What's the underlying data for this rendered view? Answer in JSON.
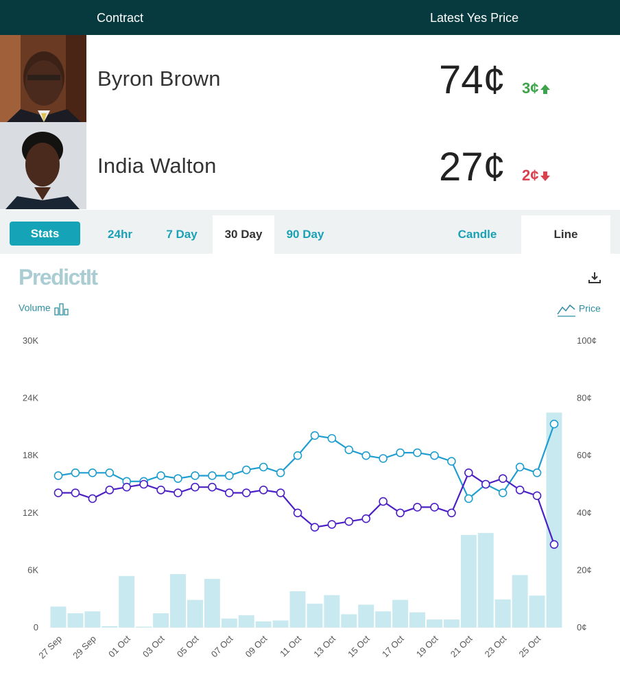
{
  "header": {
    "contract_label": "Contract",
    "price_label": "Latest Yes Price"
  },
  "contracts": [
    {
      "name": "Byron Brown",
      "price": "74¢",
      "change": "3¢",
      "direction": "up"
    },
    {
      "name": "India Walton",
      "price": "27¢",
      "change": "2¢",
      "direction": "down"
    }
  ],
  "tabs": {
    "stats": "Stats",
    "t24": "24hr",
    "t7": "7 Day",
    "t30": "30 Day",
    "t90": "90 Day",
    "candle": "Candle",
    "line": "Line",
    "active_range": "30 Day",
    "active_type": "Line"
  },
  "logo": "PredictIt",
  "volume_label": "Volume",
  "price_axis_label": "Price",
  "colors": {
    "header": "#073a3f",
    "accent": "#15a3b7",
    "up": "#3ea44b",
    "down": "#d9424f",
    "series_brown": "#1e9ecf",
    "series_walton": "#4b1fc4",
    "volume": "#c7e9ef"
  },
  "chart_data": {
    "type": "line",
    "x": [
      "27 Sep",
      "28 Sep",
      "29 Sep",
      "30 Sep",
      "01 Oct",
      "02 Oct",
      "03 Oct",
      "04 Oct",
      "05 Oct",
      "06 Oct",
      "07 Oct",
      "08 Oct",
      "09 Oct",
      "10 Oct",
      "11 Oct",
      "12 Oct",
      "13 Oct",
      "14 Oct",
      "15 Oct",
      "16 Oct",
      "17 Oct",
      "18 Oct",
      "19 Oct",
      "20 Oct",
      "21 Oct",
      "22 Oct",
      "23 Oct",
      "24 Oct",
      "25 Oct",
      "26 Oct"
    ],
    "x_tick_labels": [
      "27 Sep",
      "29 Sep",
      "01 Oct",
      "03 Oct",
      "05 Oct",
      "07 Oct",
      "09 Oct",
      "11 Oct",
      "13 Oct",
      "15 Oct",
      "17 Oct",
      "19 Oct",
      "21 Oct",
      "23 Oct",
      "25 Oct"
    ],
    "series": [
      {
        "name": "Byron Brown",
        "axis": "price",
        "values": [
          53,
          54,
          54,
          54,
          51,
          51,
          53,
          52,
          53,
          53,
          53,
          55,
          56,
          54,
          60,
          67,
          66,
          62,
          60,
          59,
          61,
          61,
          60,
          58,
          45,
          50,
          47,
          56,
          54,
          71
        ]
      },
      {
        "name": "India Walton",
        "axis": "price",
        "values": [
          47,
          47,
          45,
          48,
          49,
          50,
          48,
          47,
          49,
          49,
          47,
          47,
          48,
          47,
          40,
          35,
          36,
          37,
          38,
          44,
          40,
          42,
          42,
          40,
          54,
          50,
          52,
          48,
          46,
          29
        ]
      }
    ],
    "volume": [
      2200,
      1500,
      1700,
      150,
      5400,
      100,
      1500,
      5600,
      2900,
      5100,
      950,
      1300,
      650,
      750,
      3800,
      2500,
      3400,
      1400,
      2400,
      1700,
      2900,
      1600,
      850,
      850,
      9700,
      9900,
      2950,
      5500,
      3350,
      22500
    ],
    "y_left_ticks": [
      "30K",
      "24K",
      "18K",
      "12K",
      "6K",
      "0"
    ],
    "y_left_range": [
      0,
      30000
    ],
    "y_right_ticks": [
      "100¢",
      "80¢",
      "60¢",
      "40¢",
      "20¢",
      "0¢"
    ],
    "y_right_range": [
      0,
      100
    ],
    "grid": false
  }
}
